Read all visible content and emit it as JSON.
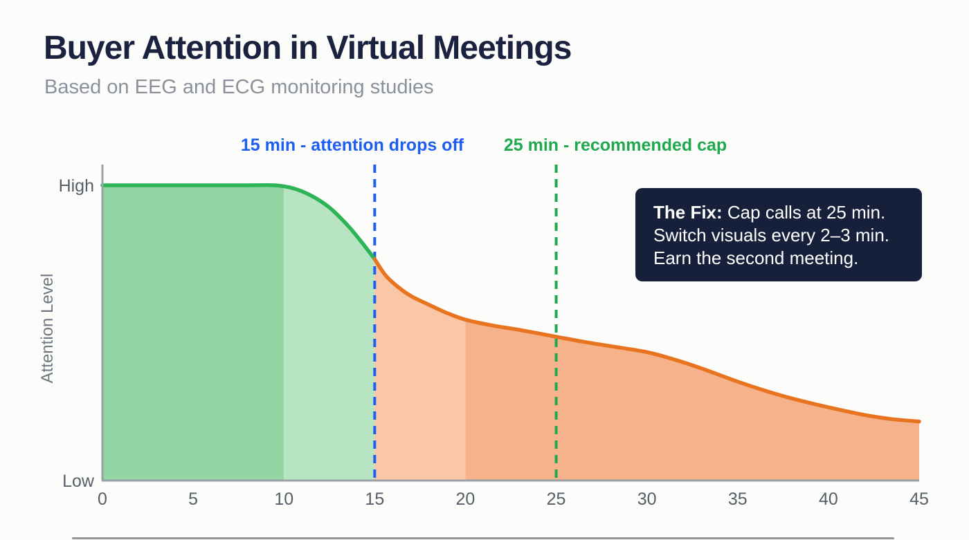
{
  "page": {
    "title": "Buyer Attention in Virtual Meetings",
    "subtitle": "Based on EEG and ECG monitoring studies"
  },
  "annotations": [
    {
      "id": "attention-drop",
      "label": "15 min - attention drops off",
      "x": 15,
      "color": "#1d5ef0"
    },
    {
      "id": "recommended-cap",
      "label": "25 min - recommended cap",
      "x": 25,
      "color": "#1fa84e"
    }
  ],
  "callout": {
    "bold": "The Fix:",
    "rest": " Cap calls at 25 min.",
    "line2": "Switch visuals every 2–3 min.",
    "line3": "Earn the second meeting.",
    "bg_color": "#17203a"
  },
  "chart_data": {
    "type": "area",
    "title": "Buyer Attention in Virtual Meetings",
    "subtitle": "Based on EEG and ECG monitoring studies",
    "xlabel": "",
    "ylabel": "Attention Level",
    "xlim": [
      0,
      45
    ],
    "ylim": [
      0,
      1
    ],
    "x_ticks": [
      0,
      5,
      10,
      15,
      20,
      25,
      30,
      35,
      40,
      45
    ],
    "y_tick_labels": [
      {
        "label": "High",
        "value": 1
      },
      {
        "label": "Low",
        "value": 0
      }
    ],
    "grid": false,
    "legend": false,
    "series": [
      {
        "name": "early-attention-green",
        "color": "#2cb457",
        "x": [
          0,
          4,
          8,
          9.5,
          10.5,
          11.5,
          12.5,
          13.5,
          14.25,
          15
        ],
        "y": [
          1.0,
          1.0,
          1.0,
          1.0,
          0.99,
          0.965,
          0.925,
          0.865,
          0.81,
          0.75
        ]
      },
      {
        "name": "declining-attention-orange",
        "color": "#e97420",
        "x": [
          15,
          15.6,
          16.3,
          17,
          18,
          19,
          20,
          21.5,
          23,
          25,
          26.5,
          28,
          30,
          31.5,
          33,
          35,
          37,
          38.5,
          40,
          42,
          43.5,
          45
        ],
        "y": [
          0.75,
          0.695,
          0.655,
          0.625,
          0.595,
          0.567,
          0.545,
          0.525,
          0.51,
          0.487,
          0.47,
          0.455,
          0.435,
          0.41,
          0.38,
          0.335,
          0.295,
          0.27,
          0.248,
          0.222,
          0.208,
          0.2
        ]
      }
    ],
    "fills": [
      {
        "from": 0,
        "to": 10,
        "color": "#93d6a4"
      },
      {
        "from": 10,
        "to": 15,
        "color": "#b7e5c2"
      },
      {
        "from": 15,
        "to": 20,
        "color": "#f9c7a7"
      },
      {
        "from": 20,
        "to": 45,
        "color": "#f6b28b"
      }
    ],
    "vlines": [
      {
        "x": 15,
        "color": "#1d5ef0",
        "style": "dashed"
      },
      {
        "x": 25,
        "color": "#1fa84e",
        "style": "dashed"
      }
    ],
    "axis_color": "#98a0a8"
  }
}
